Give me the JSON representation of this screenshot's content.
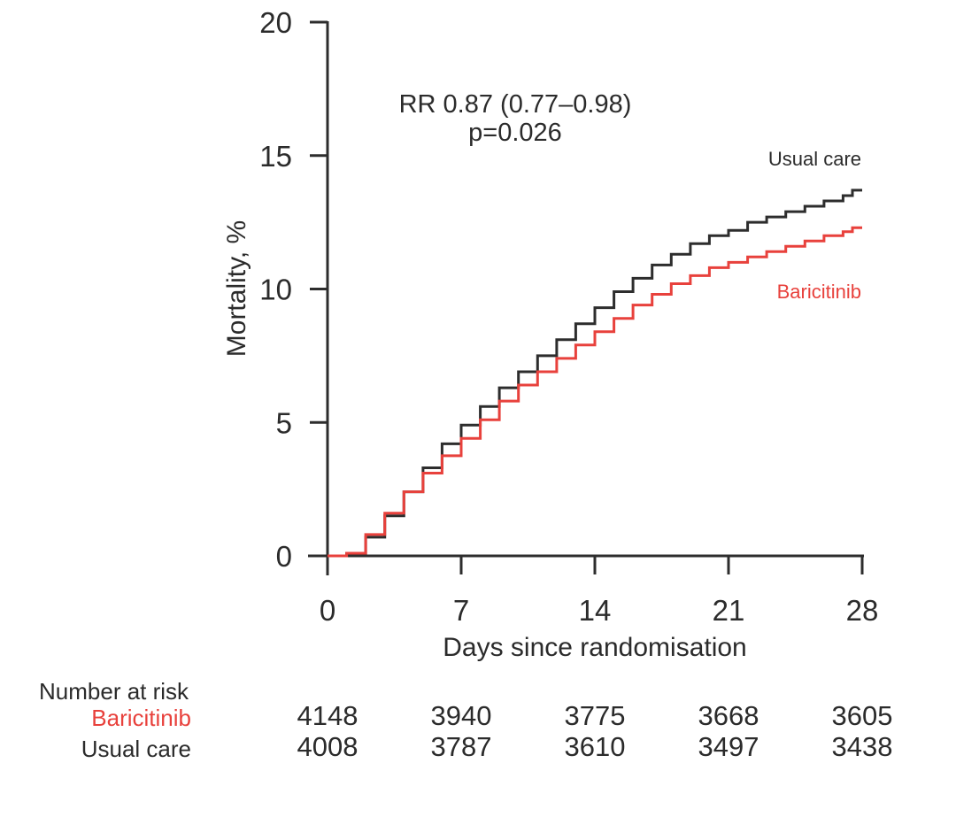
{
  "chart_data": {
    "type": "line",
    "subtype": "step",
    "title": "",
    "xlabel": "Days since randomisation",
    "ylabel": "Mortality, %",
    "xlim": [
      0,
      28
    ],
    "ylim": [
      0,
      20
    ],
    "xticks": [
      0,
      7,
      14,
      21,
      28
    ],
    "yticks": [
      0,
      5,
      10,
      15,
      20
    ],
    "grid": false,
    "legend_position": "labels-at-curve-ends",
    "annotation": [
      "RR 0.87 (0.77–0.98)",
      "p=0.026"
    ],
    "axis_color": "#2d2d2d",
    "x": [
      0,
      1,
      2,
      3,
      4,
      5,
      6,
      7,
      8,
      9,
      10,
      11,
      12,
      13,
      14,
      15,
      16,
      17,
      18,
      19,
      20,
      21,
      22,
      23,
      24,
      25,
      26,
      27,
      28
    ],
    "series": [
      {
        "name": "Usual care",
        "color": "#2d2d2d",
        "values": [
          0,
          0.1,
          0.7,
          1.5,
          2.4,
          3.3,
          4.2,
          4.9,
          5.6,
          6.3,
          6.9,
          7.5,
          8.1,
          8.7,
          9.3,
          9.9,
          10.4,
          10.9,
          11.3,
          11.7,
          12.0,
          12.2,
          12.5,
          12.7,
          12.9,
          13.1,
          13.3,
          13.5,
          13.7
        ]
      },
      {
        "name": "Baricitinib",
        "color": "#e8413c",
        "values": [
          0,
          0.1,
          0.8,
          1.6,
          2.4,
          3.1,
          3.75,
          4.4,
          5.1,
          5.8,
          6.4,
          6.9,
          7.4,
          7.9,
          8.4,
          8.9,
          9.4,
          9.8,
          10.2,
          10.5,
          10.8,
          11.0,
          11.2,
          11.4,
          11.6,
          11.8,
          12.0,
          12.15,
          12.3
        ]
      }
    ],
    "number_at_risk": {
      "header": "Number at risk",
      "days": [
        0,
        7,
        14,
        21,
        28
      ],
      "rows": [
        {
          "label": "Baricitinib",
          "color": "#e8413c",
          "values": [
            "4148",
            "3940",
            "3775",
            "3668",
            "3605"
          ]
        },
        {
          "label": "Usual care",
          "color": "#2b2b2b",
          "values": [
            "4008",
            "3787",
            "3610",
            "3497",
            "3438"
          ]
        }
      ]
    }
  }
}
